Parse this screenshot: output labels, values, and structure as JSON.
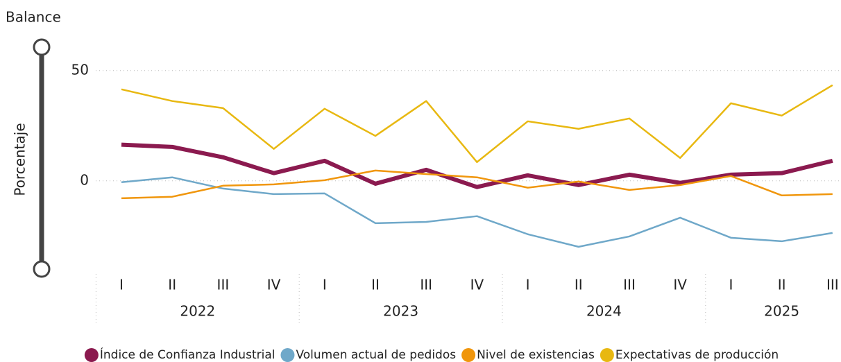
{
  "chart_data": {
    "type": "line",
    "title": "Balance",
    "y_label": "Porcentaje",
    "categories": [
      "I",
      "II",
      "III",
      "IV",
      "I",
      "II",
      "III",
      "IV",
      "I",
      "II",
      "III",
      "IV",
      "I",
      "II",
      "III"
    ],
    "groups": [
      "2022",
      "2023",
      "2024",
      "2025"
    ],
    "series": [
      {
        "name": "Índice de Confianza Industrial",
        "color": "#8b1a4f",
        "values": [
          16.4,
          15.4,
          10.7,
          3.5,
          9.1,
          -1.3,
          5.0,
          -2.8,
          2.5,
          -1.9,
          2.8,
          -0.9,
          2.8,
          3.5,
          9.1
        ]
      },
      {
        "name": "Volumen actual de pedidos",
        "color": "#6fa8c9",
        "values": [
          -0.6,
          1.6,
          -3.5,
          -6.0,
          -5.7,
          -19.2,
          -18.6,
          -16.0,
          -24.2,
          -29.9,
          -25.2,
          -16.7,
          -25.8,
          -27.4,
          -23.6
        ]
      },
      {
        "name": "Nivel de existencias",
        "color": "#f0960c",
        "values": [
          -7.9,
          -7.2,
          -2.2,
          -1.6,
          0.3,
          4.7,
          3.1,
          1.6,
          -3.1,
          -0.3,
          -4.1,
          -1.9,
          2.2,
          -6.6,
          -6.0
        ]
      },
      {
        "name": "Expectativas de producción",
        "color": "#e8b811",
        "values": [
          41.5,
          36.2,
          33.0,
          14.5,
          32.7,
          20.4,
          36.2,
          8.5,
          27.0,
          23.6,
          28.3,
          10.4,
          35.2,
          29.6,
          43.4
        ]
      }
    ],
    "ylim": [
      -40,
      60
    ],
    "yticks": [
      0,
      50
    ],
    "grid": true
  }
}
